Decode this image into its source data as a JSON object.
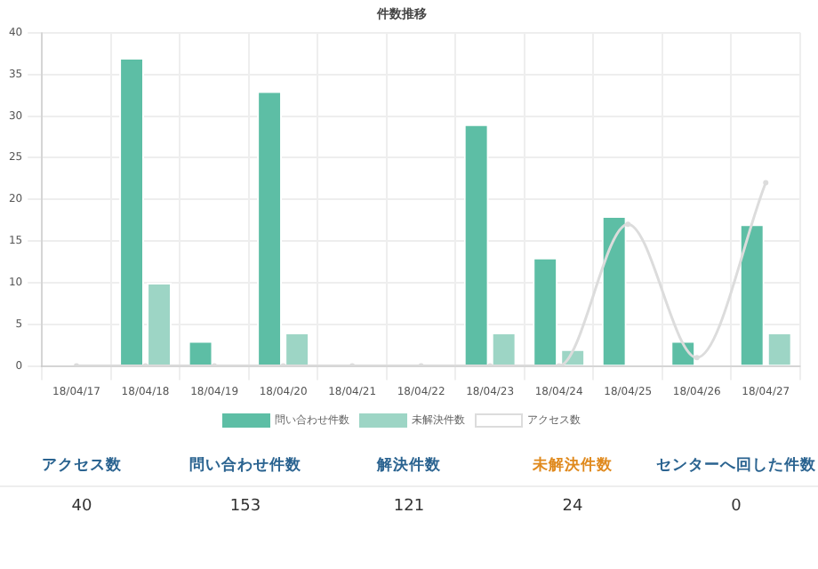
{
  "chart_data": [
    {
      "type": "bar",
      "title": "件数推移",
      "categories": [
        "18/04/17",
        "18/04/18",
        "18/04/19",
        "18/04/20",
        "18/04/21",
        "18/04/22",
        "18/04/23",
        "18/04/24",
        "18/04/25",
        "18/04/26",
        "18/04/27"
      ],
      "series": [
        {
          "name": "問い合わせ件数",
          "color": "#5dbea5",
          "values": [
            0,
            37,
            3,
            33,
            0,
            0,
            29,
            13,
            18,
            3,
            17
          ]
        },
        {
          "name": "未解決件数",
          "color": "#9dd5c5",
          "values": [
            0,
            10,
            0,
            4,
            0,
            0,
            4,
            2,
            0,
            0,
            4
          ]
        },
        {
          "name": "アクセス数",
          "type": "line",
          "color": "#dcdcdc",
          "marker": "circle",
          "values": [
            0,
            0,
            0,
            0,
            0,
            0,
            0,
            0,
            17,
            1,
            22
          ]
        }
      ],
      "ylim": [
        0,
        40
      ],
      "yticks": [
        0,
        5,
        10,
        15,
        20,
        25,
        30,
        35,
        40
      ],
      "grid": true,
      "legend": "bottom"
    },
    {
      "type": "other",
      "categories": [
        "アクセス数",
        "問い合わせ件数",
        "解決件数",
        "未解決件数",
        "センターへ回した件数"
      ],
      "values": [
        40,
        153,
        121,
        24,
        0
      ],
      "data_labels": true,
      "colors": [
        "#2a6390",
        "#2a6390",
        "#2a6390",
        "#e08a1e",
        "#2a6390"
      ]
    }
  ]
}
